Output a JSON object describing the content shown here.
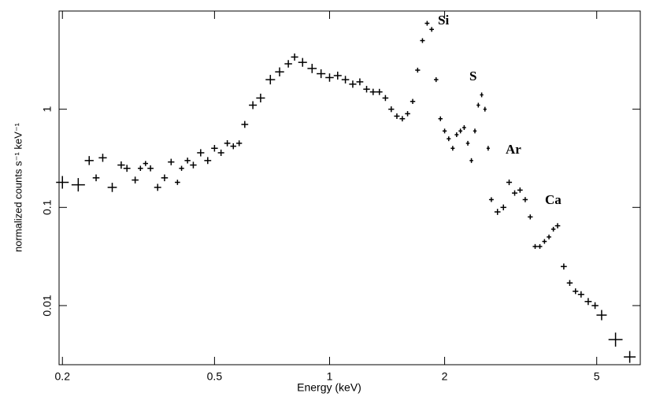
{
  "chart_data": {
    "type": "scatter",
    "xlabel": "Energy (keV)",
    "ylabel": "normalized counts s⁻¹ keV⁻¹",
    "xscale": "log",
    "yscale": "log",
    "xlim": [
      0.196,
      6.5
    ],
    "ylim": [
      0.0025,
      10
    ],
    "xticks": [
      0.2,
      0.5,
      1,
      2,
      5
    ],
    "yticks": [
      0.01,
      0.1,
      1
    ],
    "color": "#000000",
    "annotations": [
      "Si",
      "S",
      "Ar",
      "Ca"
    ],
    "x": [
      0.2,
      0.22,
      0.235,
      0.245,
      0.255,
      0.27,
      0.285,
      0.295,
      0.31,
      0.32,
      0.33,
      0.34,
      0.355,
      0.37,
      0.385,
      0.4,
      0.41,
      0.425,
      0.44,
      0.46,
      0.48,
      0.5,
      0.52,
      0.54,
      0.56,
      0.58,
      0.6,
      0.63,
      0.66,
      0.7,
      0.74,
      0.78,
      0.81,
      0.85,
      0.9,
      0.95,
      1.0,
      1.05,
      1.1,
      1.15,
      1.2,
      1.25,
      1.3,
      1.35,
      1.4,
      1.45,
      1.5,
      1.55,
      1.6,
      1.65,
      1.7,
      1.75,
      1.8,
      1.85,
      1.9,
      1.95,
      2.0,
      2.05,
      2.1,
      2.15,
      2.2,
      2.25,
      2.3,
      2.35,
      2.4,
      2.45,
      2.5,
      2.55,
      2.6,
      2.65,
      2.75,
      2.85,
      2.95,
      3.05,
      3.15,
      3.25,
      3.35,
      3.45,
      3.55,
      3.65,
      3.75,
      3.85,
      3.95,
      4.1,
      4.25,
      4.4,
      4.55,
      4.75,
      4.95,
      5.15,
      5.6,
      6.1
    ],
    "values": [
      0.18,
      0.17,
      0.3,
      0.2,
      0.32,
      0.16,
      0.27,
      0.25,
      0.19,
      0.25,
      0.28,
      0.25,
      0.16,
      0.2,
      0.29,
      0.18,
      0.25,
      0.3,
      0.27,
      0.36,
      0.3,
      0.4,
      0.36,
      0.45,
      0.42,
      0.45,
      0.7,
      1.1,
      1.3,
      2.0,
      2.4,
      2.9,
      3.4,
      3.0,
      2.6,
      2.3,
      2.1,
      2.2,
      2.0,
      1.8,
      1.9,
      1.6,
      1.5,
      1.5,
      1.3,
      1.0,
      0.85,
      0.8,
      0.9,
      1.2,
      2.5,
      5.0,
      7.5,
      6.5,
      2.0,
      0.8,
      0.6,
      0.5,
      0.4,
      0.55,
      0.6,
      0.65,
      0.45,
      0.3,
      0.6,
      1.1,
      1.4,
      1.0,
      0.4,
      0.12,
      0.09,
      0.1,
      0.18,
      0.14,
      0.15,
      0.12,
      0.08,
      0.04,
      0.04,
      0.045,
      0.05,
      0.06,
      0.065,
      0.025,
      0.017,
      0.014,
      0.013,
      0.011,
      0.01,
      0.008,
      0.0045,
      0.003
    ]
  }
}
